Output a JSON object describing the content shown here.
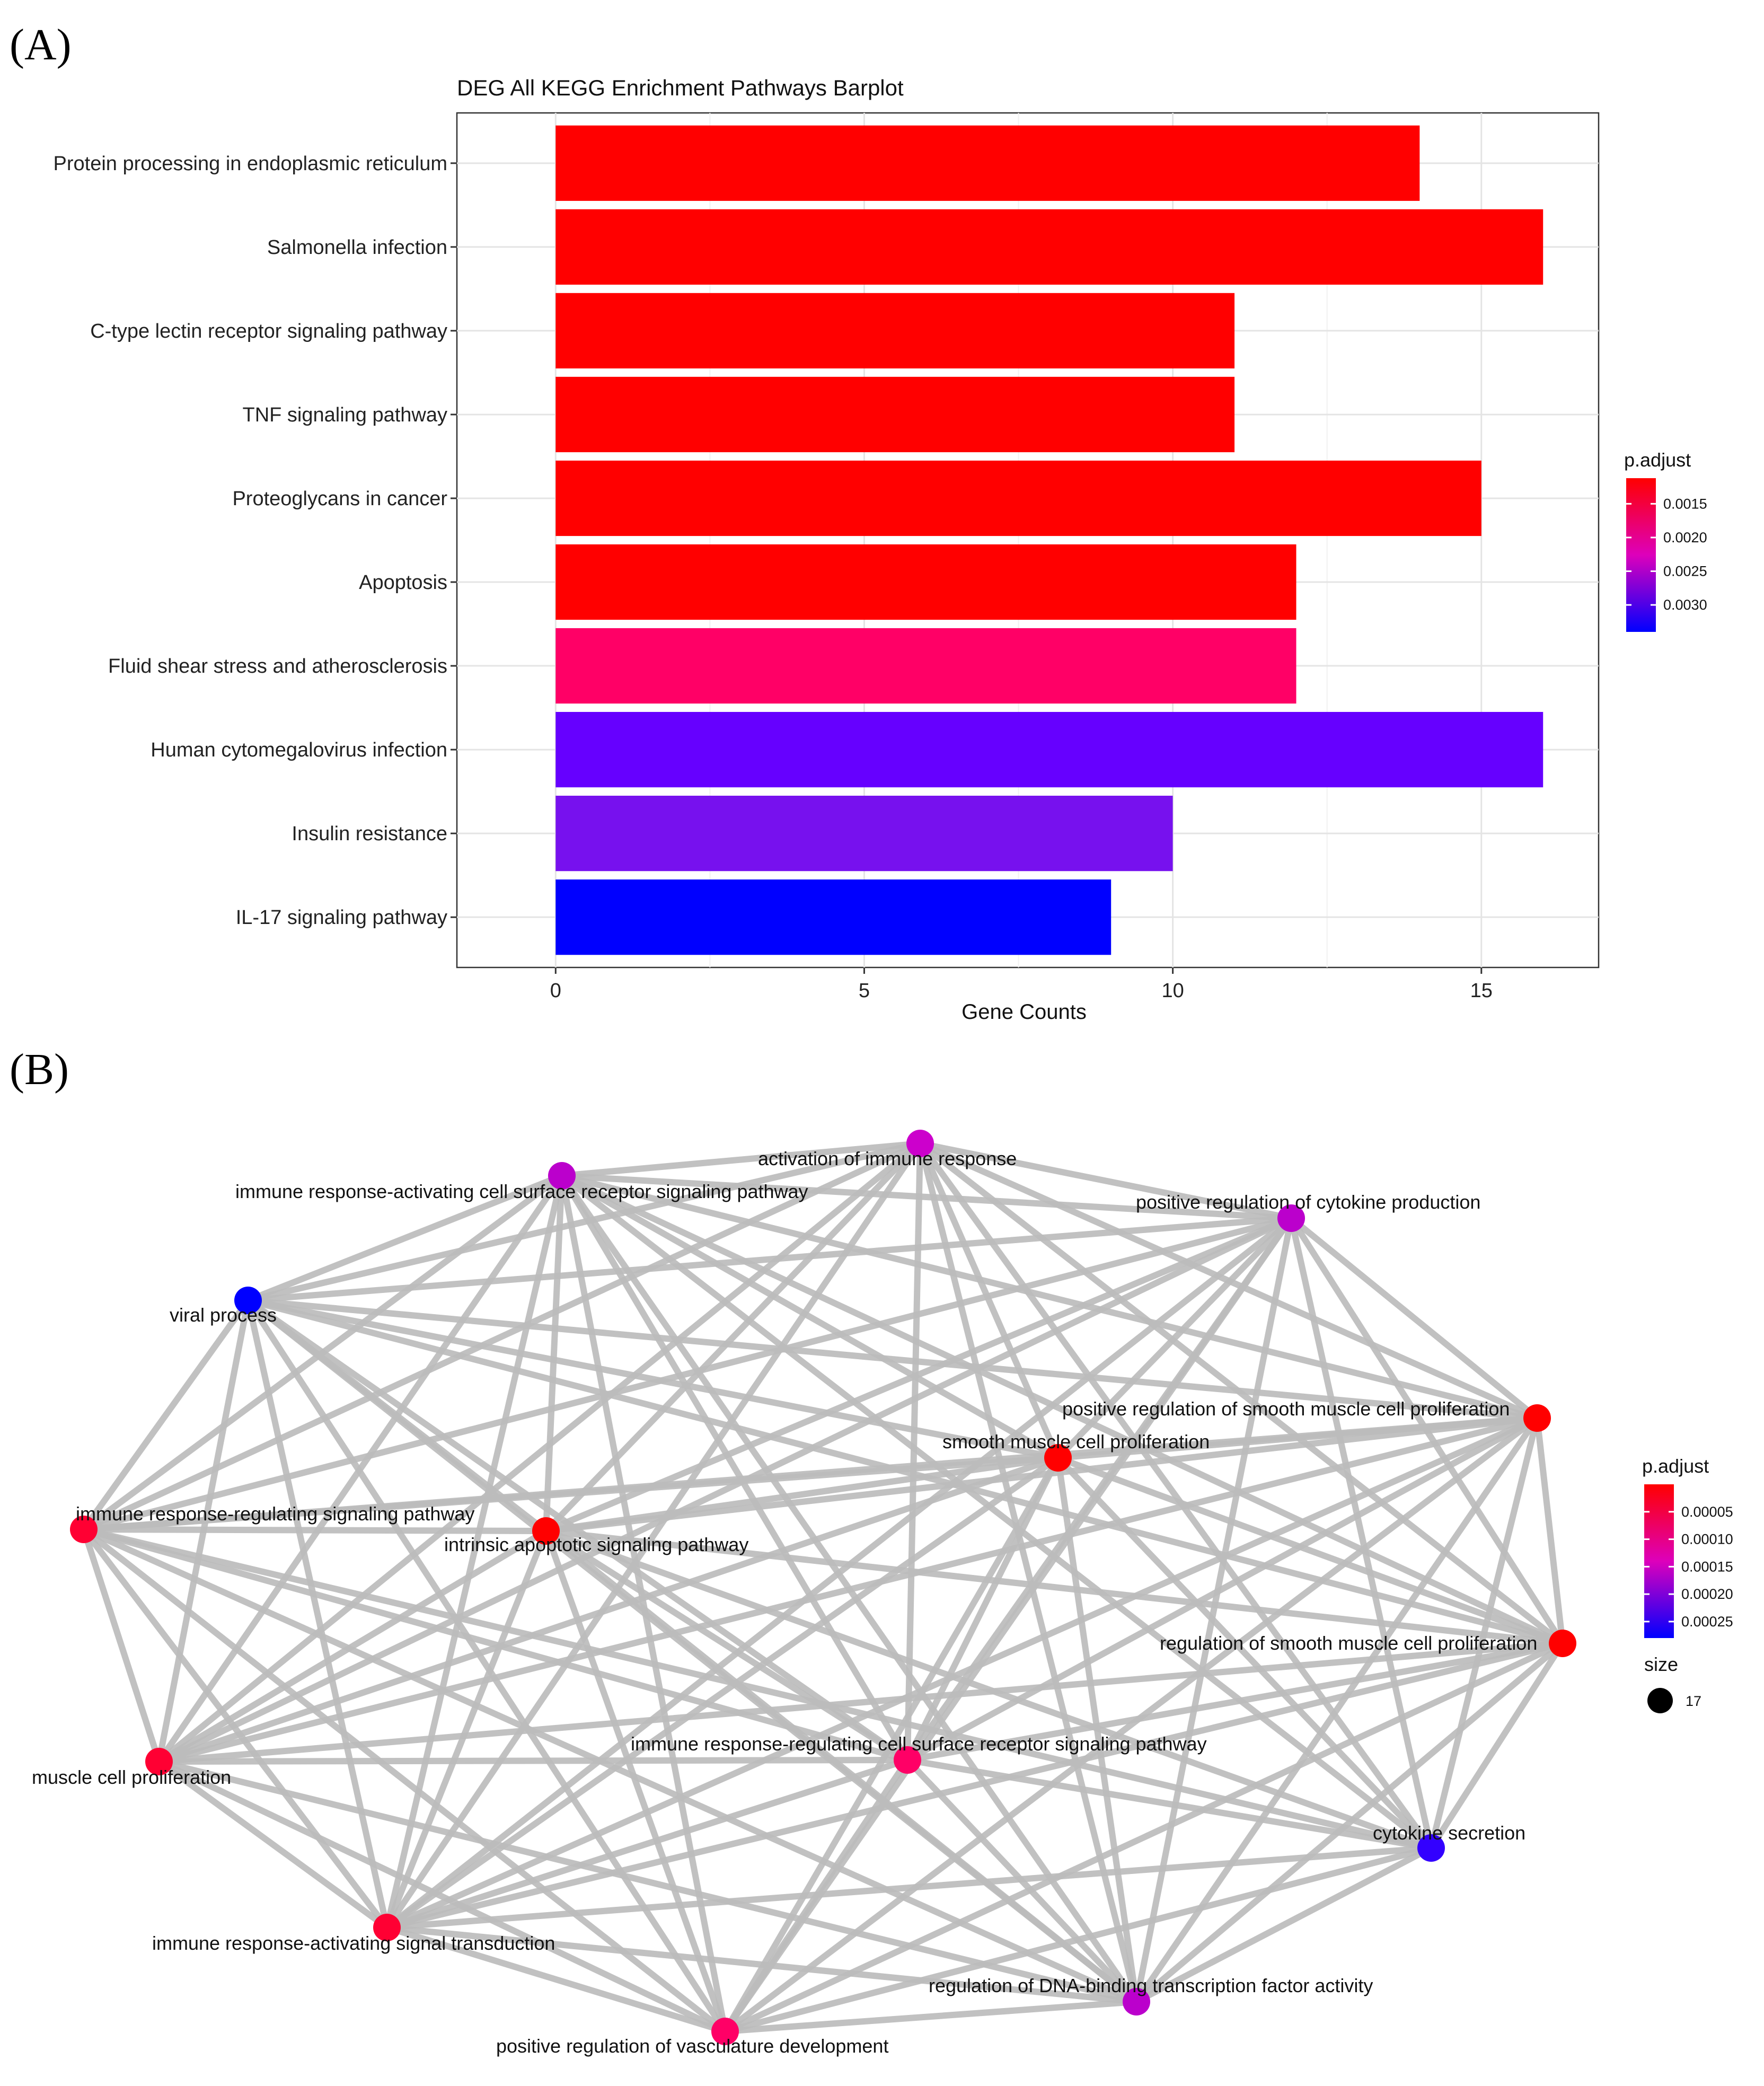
{
  "panel_a": {
    "label": "(A)",
    "chart_data": {
      "type": "bar",
      "orientation": "horizontal",
      "title": "DEG All KEGG Enrichment Pathways Barplot",
      "xlabel": "Gene Counts",
      "ylabel": "",
      "xlim": [
        -1.6,
        16.9
      ],
      "xticks": [
        0,
        5,
        10,
        15
      ],
      "grid": true,
      "categories": [
        "Protein processing in endoplasmic reticulum",
        "Salmonella infection",
        "C-type lectin receptor signaling pathway",
        "TNF signaling pathway",
        "Proteoglycans in cancer",
        "Apoptosis",
        "Fluid shear stress and atherosclerosis",
        "Human cytomegalovirus infection",
        "Insulin resistance",
        "IL-17 signaling pathway"
      ],
      "values": [
        14,
        16,
        11,
        11,
        15,
        12,
        12,
        16,
        10,
        9
      ],
      "p_adjust": [
        0.00112,
        0.00112,
        0.00112,
        0.00112,
        0.00112,
        0.00112,
        0.00195,
        0.00295,
        0.00285,
        0.0034
      ],
      "colors": [
        "#ff0000",
        "#ff0000",
        "#ff0000",
        "#ff0000",
        "#ff0000",
        "#ff0000",
        "#ff0066",
        "#6600ff",
        "#7711ee",
        "#0000ff"
      ],
      "legend": {
        "title": "p.adjust",
        "position": "right",
        "range": [
          0.00112,
          0.0034
        ],
        "ticks": [
          0.0015,
          0.002,
          0.0025,
          0.003
        ],
        "tick_labels": [
          "0.0015",
          "0.0020",
          "0.0025",
          "0.0030"
        ],
        "low_color": "#ff0000",
        "high_color": "#0000ff"
      }
    }
  },
  "panel_b": {
    "label": "(B)",
    "chart_data": {
      "type": "network",
      "nodes": [
        {
          "id": "activation",
          "label": "activation of immune response",
          "p_adjust": 0.00014,
          "color": "#cc00cc"
        },
        {
          "id": "irac_surface",
          "label": "immune response-activating cell surface receptor signaling pathway",
          "p_adjust": 0.00015,
          "color": "#bb00cc"
        },
        {
          "id": "pos_cytokine",
          "label": "positive regulation of cytokine production",
          "p_adjust": 0.00014,
          "color": "#bb00cc"
        },
        {
          "id": "viral",
          "label": "viral process",
          "p_adjust": 0.00027,
          "color": "#0000ff"
        },
        {
          "id": "pos_smc",
          "label": "positive regulation of smooth muscle cell proliferation",
          "p_adjust": 1e-05,
          "color": "#ff0000"
        },
        {
          "id": "smc_prolif",
          "label": "smooth muscle cell proliferation",
          "p_adjust": 1e-05,
          "color": "#ff0000"
        },
        {
          "id": "irr_signaling",
          "label": "immune response-regulating signaling pathway",
          "p_adjust": 2e-05,
          "color": "#ff0033"
        },
        {
          "id": "intrinsic_apop",
          "label": "intrinsic apoptotic signaling pathway",
          "p_adjust": 1e-05,
          "color": "#ff0000"
        },
        {
          "id": "reg_smc",
          "label": "regulation of smooth muscle cell proliferation",
          "p_adjust": 1e-05,
          "color": "#ff0000"
        },
        {
          "id": "muscle_prolif",
          "label": "muscle cell proliferation",
          "p_adjust": 2e-05,
          "color": "#ff0033"
        },
        {
          "id": "irr_surface",
          "label": "immune response-regulating cell surface receptor signaling pathway",
          "p_adjust": 5e-05,
          "color": "#ff0066"
        },
        {
          "id": "cytokine_sec",
          "label": "cytokine secretion",
          "p_adjust": 0.00026,
          "color": "#3300ff"
        },
        {
          "id": "irac_transduction",
          "label": "immune response-activating signal transduction",
          "p_adjust": 2e-05,
          "color": "#ff0033"
        },
        {
          "id": "dna_binding",
          "label": "regulation of DNA-binding transcription factor activity",
          "p_adjust": 0.00015,
          "color": "#bb00cc"
        },
        {
          "id": "vasculature",
          "label": "positive regulation of vasculature development",
          "p_adjust": 6e-05,
          "color": "#ff0066"
        }
      ],
      "edge_color": "#bcbcbc",
      "legend": {
        "color_title": "p.adjust",
        "position": "right",
        "range": [
          0.0,
          0.00028
        ],
        "ticks": [
          5e-05,
          0.0001,
          0.00015,
          0.0002,
          0.00025
        ],
        "tick_labels": [
          "0.00005",
          "0.00010",
          "0.00015",
          "0.00020",
          "0.00025"
        ],
        "low_color": "#ff0000",
        "high_color": "#0000ff",
        "size_title": "size",
        "size_value": "17"
      }
    }
  }
}
